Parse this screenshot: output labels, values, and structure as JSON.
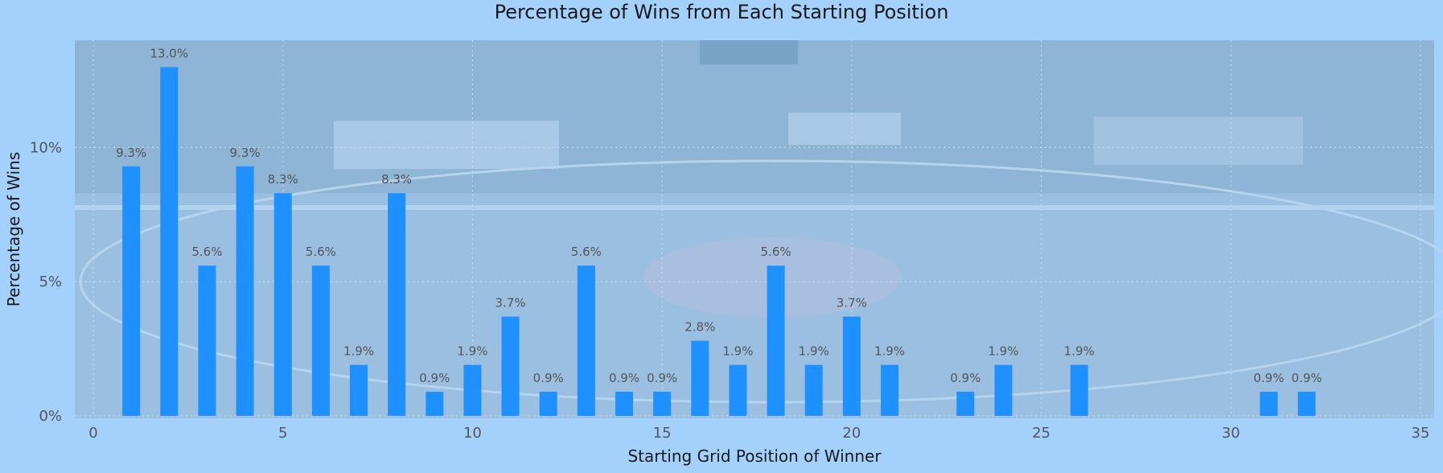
{
  "chart_data": {
    "type": "bar",
    "title": "Percentage of Wins from Each Starting Position",
    "xlabel": "Starting Grid Position of Winner",
    "ylabel": "Percentage of Wins",
    "xlim": [
      0,
      35
    ],
    "ylim": [
      0,
      14
    ],
    "xticks": [
      0,
      5,
      10,
      15,
      20,
      25,
      30,
      35
    ],
    "yticks": [
      0,
      5,
      10
    ],
    "ytick_labels": [
      "0%",
      "5%",
      "10%"
    ],
    "x": [
      1,
      2,
      3,
      4,
      5,
      6,
      7,
      8,
      9,
      10,
      11,
      12,
      13,
      14,
      15,
      16,
      17,
      18,
      19,
      20,
      21,
      23,
      24,
      26,
      31,
      32
    ],
    "values": [
      9.3,
      13.0,
      5.6,
      9.3,
      8.3,
      5.6,
      1.9,
      8.3,
      0.9,
      1.9,
      3.7,
      0.9,
      5.6,
      0.9,
      0.9,
      2.8,
      1.9,
      5.6,
      1.9,
      3.7,
      1.9,
      0.9,
      1.9,
      1.9,
      0.9,
      0.9
    ],
    "labels": [
      "9.3%",
      "13.0%",
      "5.6%",
      "9.3%",
      "8.3%",
      "5.6%",
      "1.9%",
      "8.3%",
      "0.9%",
      "1.9%",
      "3.7%",
      "0.9%",
      "5.6%",
      "0.9%",
      "0.9%",
      "2.8%",
      "1.9%",
      "5.6%",
      "1.9%",
      "3.7%",
      "1.9%",
      "0.9%",
      "1.9%",
      "1.9%",
      "0.9%",
      "0.9%"
    ],
    "bar_color": "#1e90ff",
    "background_color": "#a3d1fc",
    "grid": true
  }
}
